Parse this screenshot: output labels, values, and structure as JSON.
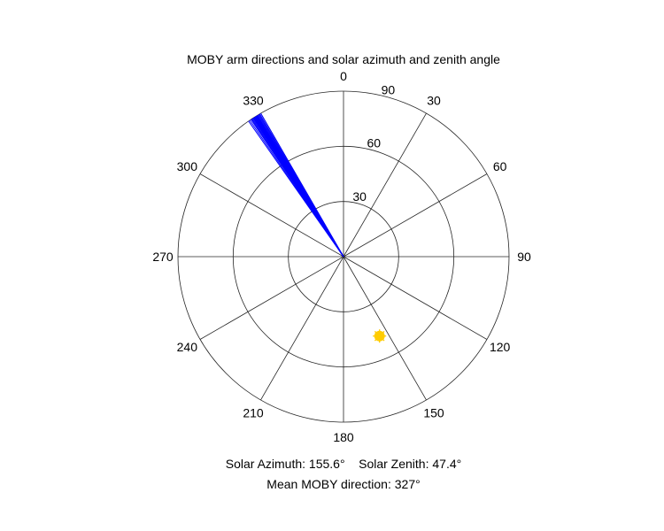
{
  "chart_data": {
    "type": "polar",
    "title": "MOBY arm directions and solar azimuth and zenith angle",
    "theta_ticks": [
      "0",
      "30",
      "60",
      "90",
      "120",
      "150",
      "180",
      "210",
      "240",
      "270",
      "300",
      "330"
    ],
    "theta_direction": "clockwise",
    "theta_zero": "top",
    "r_ticks": [
      "30",
      "60",
      "90"
    ],
    "r_lim": [
      0,
      90
    ],
    "series": [
      {
        "kind": "radial-lines",
        "color": "#0000ff",
        "r": 90,
        "theta_deg": [
          325.0,
          325.5,
          326.0,
          326.3,
          326.6,
          326.9,
          327.1,
          327.3,
          327.5,
          327.7,
          327.9,
          328.1,
          328.3,
          328.5,
          328.7,
          329.0,
          329.3,
          329.6,
          330.0
        ]
      },
      {
        "kind": "marker",
        "marker": "sun-icon",
        "color": "#ffcc00",
        "theta_deg": 155.6,
        "r": 47.4
      }
    ],
    "annotations": [
      "Solar Azimuth: 155.6°    Solar Zenith: 47.4°",
      "Mean MOBY direction: 327°"
    ]
  }
}
